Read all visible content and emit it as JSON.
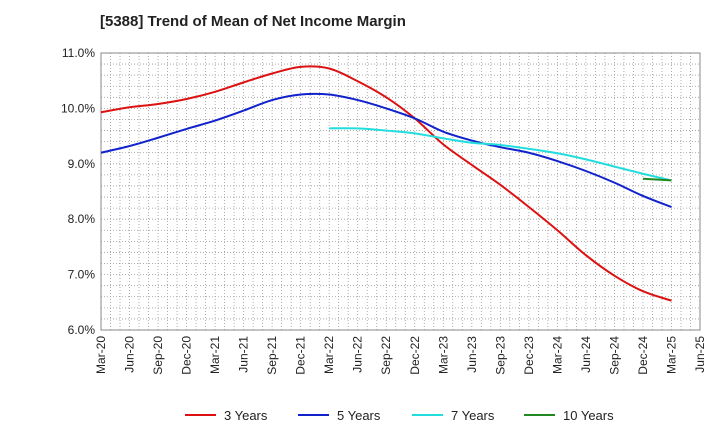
{
  "chart_data": {
    "type": "line",
    "title": "[5388]  Trend of Mean of Net Income Margin",
    "xlabel": "",
    "ylabel": "",
    "x_ticks": [
      "Mar-20",
      "Jun-20",
      "Sep-20",
      "Dec-20",
      "Mar-21",
      "Jun-21",
      "Sep-21",
      "Dec-21",
      "Mar-22",
      "Jun-22",
      "Sep-22",
      "Dec-22",
      "Mar-23",
      "Jun-23",
      "Sep-23",
      "Dec-23",
      "Mar-24",
      "Jun-24",
      "Sep-24",
      "Dec-24",
      "Mar-25",
      "Jun-25"
    ],
    "y_ticks": [
      "6.0%",
      "7.0%",
      "8.0%",
      "9.0%",
      "10.0%",
      "11.0%"
    ],
    "ylim": [
      6.0,
      11.0
    ],
    "grid": true,
    "legend_position": "bottom",
    "series": [
      {
        "name": "3 Years",
        "color": "#dd1111",
        "x": [
          "Mar-20",
          "Jun-20",
          "Sep-20",
          "Dec-20",
          "Mar-21",
          "Jun-21",
          "Sep-21",
          "Dec-21",
          "Mar-22",
          "Jun-22",
          "Sep-22",
          "Dec-22",
          "Mar-23",
          "Jun-23",
          "Sep-23",
          "Dec-23",
          "Mar-24",
          "Jun-24",
          "Sep-24",
          "Dec-24",
          "Mar-25"
        ],
        "values": [
          9.93,
          10.02,
          10.08,
          10.17,
          10.3,
          10.47,
          10.63,
          10.75,
          10.72,
          10.49,
          10.2,
          9.82,
          9.35,
          8.98,
          8.62,
          8.22,
          7.8,
          7.35,
          6.98,
          6.7,
          6.53
        ]
      },
      {
        "name": "5 Years",
        "color": "#1122cc",
        "x": [
          "Mar-20",
          "Jun-20",
          "Sep-20",
          "Dec-20",
          "Mar-21",
          "Jun-21",
          "Sep-21",
          "Dec-21",
          "Mar-22",
          "Jun-22",
          "Sep-22",
          "Dec-22",
          "Mar-23",
          "Jun-23",
          "Sep-23",
          "Dec-23",
          "Mar-24",
          "Jun-24",
          "Sep-24",
          "Dec-24",
          "Mar-25"
        ],
        "values": [
          9.2,
          9.32,
          9.47,
          9.63,
          9.78,
          9.96,
          10.15,
          10.25,
          10.25,
          10.15,
          10.0,
          9.82,
          9.58,
          9.42,
          9.3,
          9.2,
          9.05,
          8.87,
          8.66,
          8.42,
          8.22
        ]
      },
      {
        "name": "7 Years",
        "color": "#22dddd",
        "x": [
          "Mar-22",
          "Jun-22",
          "Sep-22",
          "Dec-22",
          "Mar-23",
          "Jun-23",
          "Sep-23",
          "Dec-23",
          "Mar-24",
          "Jun-24",
          "Sep-24",
          "Dec-24",
          "Mar-25"
        ],
        "values": [
          9.64,
          9.64,
          9.6,
          9.55,
          9.46,
          9.38,
          9.34,
          9.27,
          9.19,
          9.08,
          8.95,
          8.82,
          8.7
        ]
      },
      {
        "name": "10 Years",
        "color": "#228822",
        "x": [
          "Dec-24",
          "Mar-25"
        ],
        "values": [
          8.73,
          8.7
        ]
      }
    ]
  }
}
